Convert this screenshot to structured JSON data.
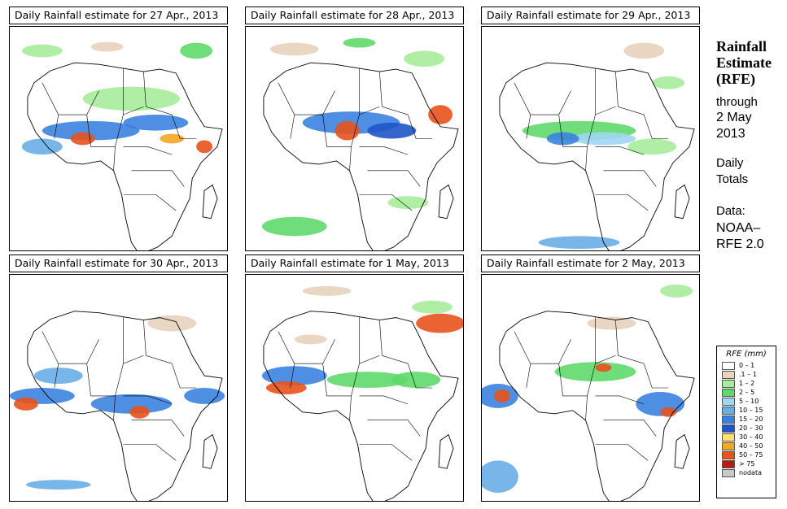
{
  "panels": [
    {
      "title": "Daily Rainfall estimate for  27 Apr., 2013"
    },
    {
      "title": "Daily Rainfall estimate for  28 Apr., 2013"
    },
    {
      "title": "Daily Rainfall estimate for  29 Apr., 2013"
    },
    {
      "title": "Daily Rainfall estimate for  30 Apr., 2013"
    },
    {
      "title": "Daily Rainfall estimate for  1 May, 2013"
    },
    {
      "title": "Daily Rainfall estimate for  2 May, 2013"
    }
  ],
  "side": {
    "heading": [
      "Rainfall",
      "Estimate",
      "(RFE)"
    ],
    "through": "through",
    "date_line1": "2 May",
    "date_line2": "2013",
    "daily": "Daily",
    "totals": "Totals",
    "data_label": "Data:",
    "source1": "NOAA–",
    "source2": "RFE 2.0"
  },
  "legend": {
    "title": "RFE (mm)",
    "items": [
      {
        "label": "0 – 1",
        "color": "#ffffff"
      },
      {
        "label": ".1 – 1",
        "color": "#e8d3bc"
      },
      {
        "label": "1 – 2",
        "color": "#a6ec9a"
      },
      {
        "label": "2 – 5",
        "color": "#5fd96b"
      },
      {
        "label": "5 – 10",
        "color": "#9fd7f2"
      },
      {
        "label": "10 – 15",
        "color": "#69aee8"
      },
      {
        "label": "15 – 20",
        "color": "#3b82e0"
      },
      {
        "label": "20 – 30",
        "color": "#1f55c9"
      },
      {
        "label": "30 – 40",
        "color": "#fbe26a"
      },
      {
        "label": "40 – 50",
        "color": "#f5a623"
      },
      {
        "label": "50 – 75",
        "color": "#e8521c"
      },
      {
        "label": "> 75",
        "color": "#b81b10"
      },
      {
        "label": "nodata",
        "color": "#c9c9c9"
      }
    ]
  }
}
